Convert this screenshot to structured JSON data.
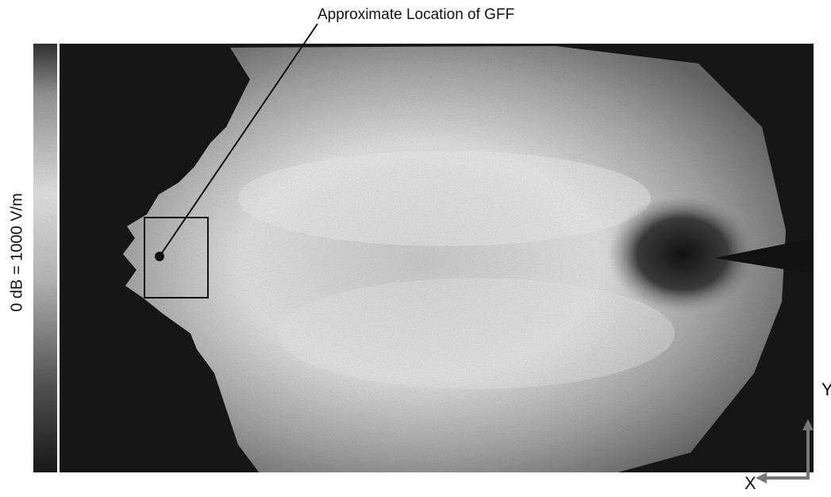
{
  "annotation": {
    "label": "Approximate Location of GFF"
  },
  "colorbar": {
    "label": "0 dB = 1000 V/m"
  },
  "axes": {
    "x": "X",
    "y": "Y"
  }
}
